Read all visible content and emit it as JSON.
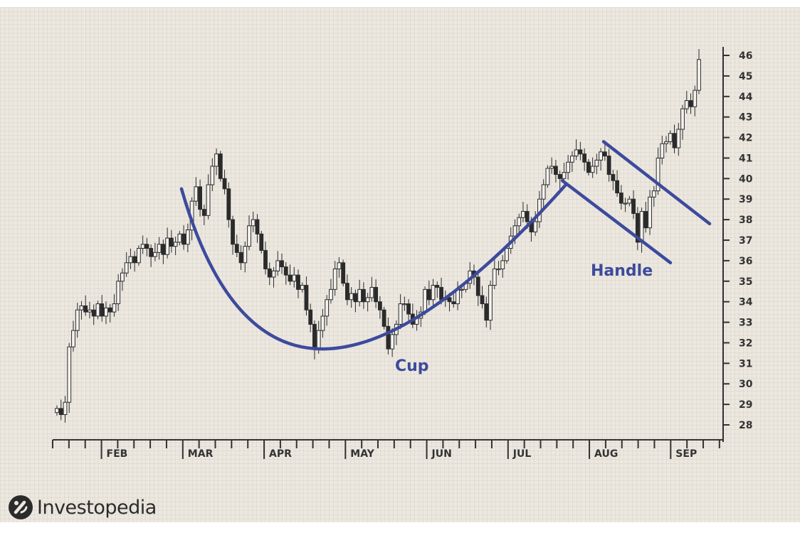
{
  "chart_data": {
    "type": "candlestick",
    "title": "",
    "xlabel": "",
    "ylabel": "",
    "ylim": [
      28,
      46
    ],
    "y_ticks": [
      28,
      29,
      30,
      31,
      32,
      33,
      34,
      35,
      36,
      37,
      38,
      39,
      40,
      41,
      42,
      43,
      44,
      45,
      46
    ],
    "y_axis_side": "right",
    "grid": true,
    "x_month_labels": [
      "FEB",
      "MAR",
      "APR",
      "MAY",
      "JUN",
      "JUL",
      "AUG",
      "SEP"
    ],
    "colors": {
      "annotation": "#3d4a9c",
      "candle": "#2b2b2b",
      "background": "#ece8e0"
    },
    "annotations": {
      "cup_label": "Cup",
      "handle_label": "Handle"
    },
    "closes": [
      28.8,
      28.5,
      29.1,
      31.8,
      32.6,
      33.6,
      33.8,
      33.5,
      33.6,
      33.3,
      33.9,
      33.3,
      33.7,
      33.5,
      33.9,
      35.0,
      35.4,
      35.9,
      36.2,
      35.9,
      36.6,
      36.8,
      36.6,
      36.2,
      36.4,
      36.8,
      36.3,
      37.1,
      36.7,
      36.9,
      37.3,
      36.8,
      37.5,
      38.9,
      39.6,
      38.5,
      38.2,
      39.7,
      40.6,
      41.2,
      40.0,
      39.5,
      38.0,
      36.8,
      36.4,
      35.9,
      36.7,
      37.7,
      38.0,
      37.3,
      36.5,
      35.6,
      35.2,
      35.5,
      36.0,
      35.7,
      35.3,
      35.0,
      35.3,
      34.6,
      34.8,
      33.6,
      32.9,
      31.7,
      32.6,
      33.3,
      34.1,
      34.6,
      35.6,
      35.9,
      34.9,
      34.1,
      34.4,
      34.0,
      34.6,
      34.0,
      34.2,
      34.7,
      34.0,
      33.6,
      32.8,
      31.7,
      32.4,
      32.9,
      33.9,
      33.9,
      33.4,
      32.9,
      33.2,
      33.5,
      34.6,
      34.1,
      34.8,
      34.7,
      34.1,
      34.2,
      34.0,
      33.9,
      34.6,
      34.6,
      34.9,
      35.5,
      35.2,
      34.3,
      33.9,
      33.1,
      34.8,
      35.6,
      35.6,
      36.0,
      36.6,
      37.2,
      37.7,
      38.1,
      38.4,
      37.9,
      37.4,
      37.9,
      39.0,
      39.7,
      40.5,
      40.6,
      40.2,
      40.0,
      40.3,
      40.8,
      41.1,
      41.4,
      41.2,
      40.8,
      40.3,
      40.6,
      40.9,
      41.3,
      41.1,
      40.2,
      39.9,
      39.3,
      38.8,
      38.8,
      39.0,
      38.3,
      36.9,
      38.4,
      37.6,
      39.1,
      39.4,
      41.0,
      41.7,
      41.8,
      42.2,
      41.5,
      42.4,
      43.4,
      43.8,
      43.5,
      44.3,
      45.8
    ],
    "cup_curve": [
      [
        255,
        39.5
      ],
      [
        455,
        31.7
      ],
      [
        795,
        39.7
      ]
    ],
    "handle_channel": {
      "upper": [
        [
          848,
          41.8
        ],
        [
          997,
          37.8
        ]
      ],
      "lower": [
        [
          790,
          39.9
        ],
        [
          942,
          35.9
        ]
      ]
    }
  },
  "brand": {
    "name": "Investopedia"
  }
}
